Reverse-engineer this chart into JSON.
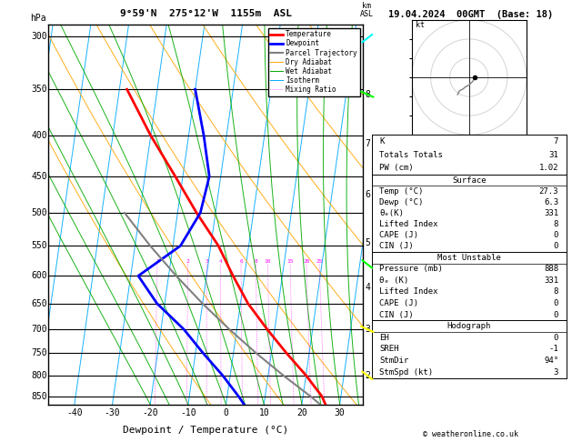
{
  "title_left": "9°59'N  275°12'W  1155m  ASL",
  "title_right": "19.04.2024  00GMT  (Base: 18)",
  "xlabel": "Dewpoint / Temperature (°C)",
  "pressure_levels": [
    300,
    350,
    400,
    450,
    500,
    550,
    600,
    650,
    700,
    750,
    800,
    850
  ],
  "temp_x": [
    27.3,
    25.0,
    20.0,
    14.0,
    8.0,
    2.0,
    -3.0,
    -8.0,
    -15.0,
    -22.0,
    -30.0,
    -38.0
  ],
  "temp_p": [
    888,
    850,
    800,
    750,
    700,
    650,
    600,
    550,
    500,
    450,
    400,
    350
  ],
  "dewp_x": [
    6.3,
    3.0,
    -2.0,
    -8.0,
    -14.0,
    -22.0,
    -28.0,
    -18.0,
    -14.0,
    -13.0,
    -16.0,
    -20.0
  ],
  "dewp_p": [
    888,
    850,
    800,
    750,
    700,
    650,
    600,
    550,
    500,
    450,
    400,
    350
  ],
  "parcel_x": [
    27.3,
    22.0,
    14.0,
    6.0,
    -2.0,
    -10.0,
    -18.0,
    -26.0,
    -34.0
  ],
  "parcel_p": [
    888,
    850,
    800,
    750,
    700,
    650,
    600,
    550,
    500
  ],
  "skew": 30,
  "temp_color": "#ff0000",
  "dewp_color": "#0000ff",
  "parcel_color": "#808080",
  "dry_adiabat_color": "#ffa500",
  "wet_adiabat_color": "#00aa00",
  "isotherm_color": "#00aaff",
  "mixing_ratio_color": "#ff00ff",
  "background_color": "#ffffff",
  "mixing_ratio_values": [
    1,
    2,
    3,
    4,
    6,
    8,
    10,
    15,
    20,
    25
  ],
  "km_labels": [
    2,
    3,
    4,
    5,
    6,
    7,
    8
  ],
  "km_pressures": [
    800,
    700,
    620,
    545,
    475,
    410,
    355
  ],
  "stats_K": 7,
  "stats_TT": 31,
  "stats_PW": "1.02",
  "stats_surf_temp": "27.3",
  "stats_surf_dewp": "6.3",
  "stats_surf_theta_e": 331,
  "stats_surf_LI": 8,
  "stats_surf_CAPE": 0,
  "stats_surf_CIN": 0,
  "stats_mu_pres": 888,
  "stats_mu_theta_e": 331,
  "stats_mu_LI": 8,
  "stats_mu_CAPE": 0,
  "stats_mu_CIN": 0,
  "stats_EH": 0,
  "stats_SREH": -1,
  "stats_StmDir": "94°",
  "stats_StmSpd": 3,
  "copyright": "© weatheronline.co.uk"
}
